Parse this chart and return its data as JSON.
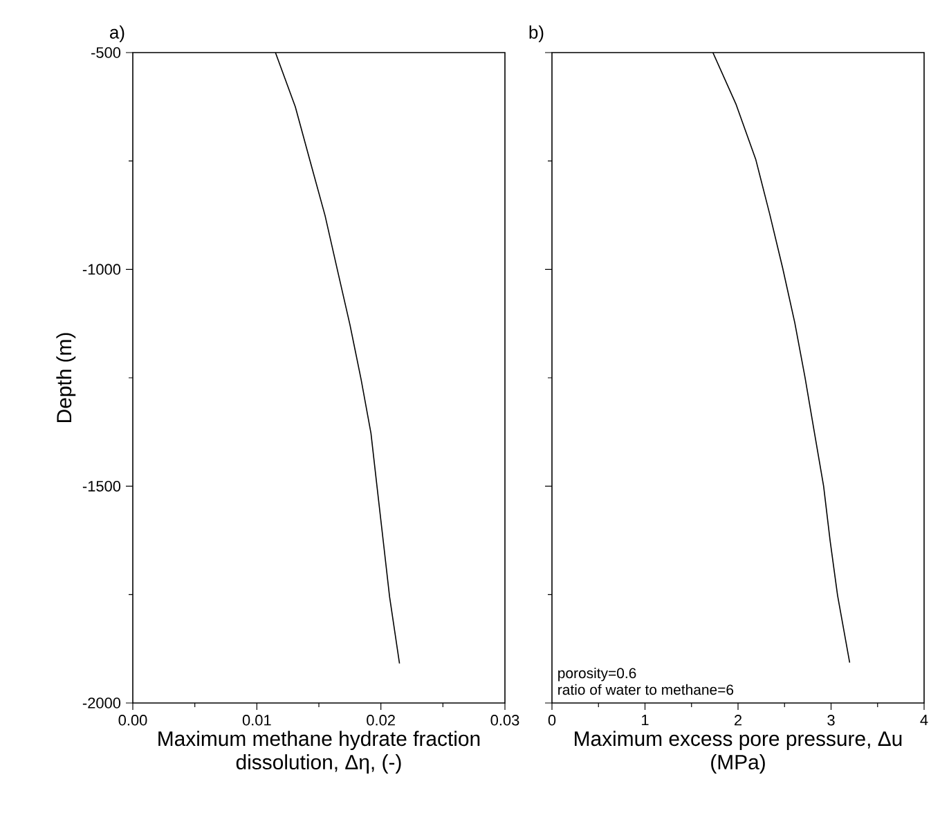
{
  "chart_data": [
    {
      "type": "line",
      "title": "a)",
      "xlabel": "Maximum methane hydrate fraction dissolution, Δη, (-)",
      "ylabel": "Depth (m)",
      "xlim": [
        0,
        0.03
      ],
      "ylim": [
        -2000,
        -500
      ],
      "xticks": [
        {
          "value": 0,
          "label": "0.00"
        },
        {
          "value": 0.005,
          "label": null
        },
        {
          "value": 0.01,
          "label": "0.01"
        },
        {
          "value": 0.015,
          "label": null
        },
        {
          "value": 0.02,
          "label": "0.02"
        },
        {
          "value": 0.025,
          "label": null
        },
        {
          "value": 0.03,
          "label": "0.03"
        }
      ],
      "yticks": [
        -2000,
        {
          "value": -1750,
          "label": null
        },
        -1500,
        {
          "value": -1250,
          "label": null
        },
        -1000,
        {
          "value": -750,
          "label": null
        },
        -500
      ],
      "marker": "none",
      "line_style": "solid",
      "series": [
        {
          "color": "#000000",
          "x": [
            0.0115,
            0.0131,
            0.0143,
            0.0155,
            0.0165,
            0.0175,
            0.0184,
            0.0192,
            0.0197,
            0.0202,
            0.0207,
            0.0215
          ],
          "values": [
            -500,
            -625,
            -751,
            -876,
            -1002,
            -1127,
            -1253,
            -1378,
            -1504,
            -1629,
            -1755,
            -1909
          ]
        }
      ]
    },
    {
      "type": "line",
      "title": "b)",
      "xlabel": "Maximum excess pore pressure, Δu (MPa)",
      "xlim": [
        0,
        4
      ],
      "ylim": [
        -2000,
        -500
      ],
      "xticks": [
        0,
        {
          "value": 0.5,
          "label": null
        },
        1,
        {
          "value": 1.5,
          "label": null
        },
        2,
        {
          "value": 2.5,
          "label": null
        },
        3,
        {
          "value": 3.5,
          "label": null
        },
        4
      ],
      "yticks": [
        -2000,
        {
          "value": -1750,
          "label": null
        },
        -1500,
        {
          "value": -1250,
          "label": null
        },
        -1000,
        {
          "value": -750,
          "label": null
        },
        -500
      ],
      "tick_labels": "x",
      "marker": "none",
      "line_style": "solid",
      "annotations": [
        "porosity=0.6",
        "ratio of water to methane=6"
      ],
      "series": [
        {
          "color": "#000000",
          "x": [
            1.73,
            1.98,
            2.19,
            2.34,
            2.48,
            2.61,
            2.72,
            2.82,
            2.92,
            2.99,
            3.07,
            3.2
          ],
          "values": [
            -500,
            -620,
            -746,
            -872,
            -997,
            -1123,
            -1249,
            -1375,
            -1500,
            -1626,
            -1752,
            -1907
          ]
        }
      ]
    }
  ]
}
